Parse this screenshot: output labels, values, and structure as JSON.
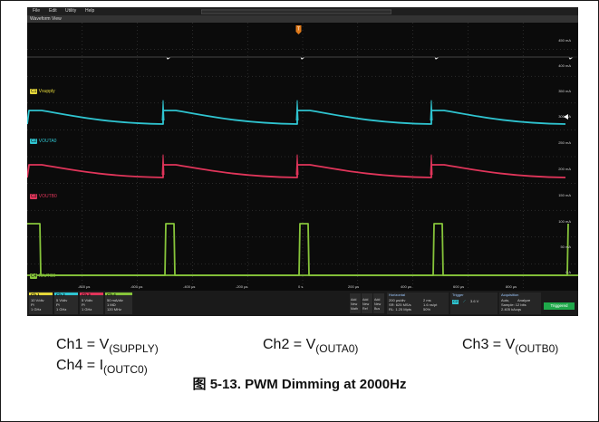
{
  "menu": {
    "file": "File",
    "edit": "Edit",
    "utility": "Utility",
    "help": "Help"
  },
  "window_title": "Waveform View",
  "trigger_marker": "T",
  "trace_labels": {
    "c1": "Vsupply",
    "c2": "VOUTA0",
    "c3": "VOUTB0",
    "c4": "IOUTC0"
  },
  "channel_tags": {
    "c1": "C1",
    "c2": "C2",
    "c3": "C3",
    "c4": "C4"
  },
  "right_scale": {
    "r0": "450 mA",
    "r1": "400 mA",
    "r2": "350 mA",
    "r3": "300 mA",
    "r4": "250 mA",
    "r5": "200 mA",
    "r6": "150 mA",
    "r7": "100 mA",
    "r8": "50 mA",
    "r9": "0 A"
  },
  "time_axis": {
    "t0": "-800 µs",
    "t1": "-600 µs",
    "t2": "-400 µs",
    "t3": "-200 µs",
    "t4": "0 s",
    "t5": "200 µs",
    "t6": "400 µs",
    "t7": "600 µs",
    "t8": "800 µs"
  },
  "channels": {
    "ch1": {
      "name": "Ch 1",
      "scale": "10 V/div",
      "coupling": "Pl",
      "bw": "1 GHz",
      "color": "#e5d83a"
    },
    "ch2": {
      "name": "Ch 2",
      "scale": "5 V/div",
      "coupling": "Pl",
      "bw": "1 GHz",
      "color": "#2fc4d0"
    },
    "ch3": {
      "name": "Ch 3",
      "scale": "5 V/div",
      "coupling": "Pl",
      "bw": "1 GHz",
      "color": "#e0355a"
    },
    "ch4": {
      "name": "Ch 4",
      "scale": "50 mA/div",
      "coupling": "1 MΩ",
      "bw": "120 MHz",
      "color": "#86c43a"
    }
  },
  "math_buttons": {
    "math": [
      "Add",
      "New",
      "Math"
    ],
    "ref": [
      "Add",
      "New",
      "Ref"
    ],
    "bus": [
      "Add",
      "New",
      "Bus"
    ]
  },
  "horizontal": {
    "title": "Horizontal",
    "line1": "200 µs/div",
    "line1b": "2 ms",
    "line2": "SR: 625 MS/s",
    "line2b": "1.6 ns/pt",
    "line3": "RL: 1.25 Mpts",
    "line3b": "50%"
  },
  "trigger": {
    "title": "Trigger",
    "channel": "C2",
    "level": "3.6 V"
  },
  "acquisition": {
    "title": "Acquisition",
    "line1": "Auto,",
    "line1b": "Analyze",
    "line2": "Sample: 12 bits",
    "line3": "2.405 kAcqs"
  },
  "status": "Triggered",
  "captions": {
    "ch1_lhs": "Ch1 = V",
    "ch1_sub": "(SUPPLY)",
    "ch2_lhs": "Ch2 = V",
    "ch2_sub": "(OUTA0)",
    "ch3_lhs": "Ch3 = V",
    "ch3_sub": "(OUTB0)",
    "ch4_lhs": "Ch4 = I",
    "ch4_sub": "(OUTC0)"
  },
  "figure_title": "图 5-13. PWM Dimming at 2000Hz"
}
